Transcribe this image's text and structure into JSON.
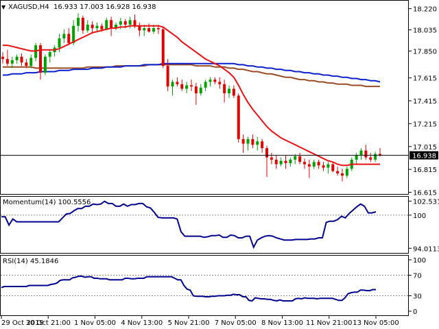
{
  "header": {
    "symbol": "XAGUSD,H4",
    "ohlc": "16.933 17.003 16.928 16.938",
    "collapse_icon": "triangle-down-icon"
  },
  "colors": {
    "bull": "#00a000",
    "bear": "#e00000",
    "ma_fast": "#e81010",
    "ma_mid": "#0a1fd0",
    "ma_slow": "#9a4a22",
    "indicator": "#000090",
    "grid_level": "#808080",
    "frame": "#000000"
  },
  "chart_data": [
    {
      "type": "candlestick",
      "title": "XAGUSD,H4",
      "ylim": [
        16.6,
        18.29
      ],
      "yticks": [
        "18.220",
        "18.035",
        "17.850",
        "17.615",
        "17.415",
        "17.215",
        "17.015",
        "16.815",
        "16.615"
      ],
      "current_price": "16.938",
      "current_price_value": 16.938,
      "candles": [
        [
          17.8,
          17.84,
          17.74,
          17.78
        ],
        [
          17.78,
          17.86,
          17.72,
          17.74
        ],
        [
          17.74,
          17.8,
          17.7,
          17.77
        ],
        [
          17.77,
          17.82,
          17.74,
          17.8
        ],
        [
          17.8,
          17.83,
          17.72,
          17.75
        ],
        [
          17.75,
          17.78,
          17.7,
          17.72
        ],
        [
          17.72,
          17.82,
          17.7,
          17.79
        ],
        [
          17.79,
          17.92,
          17.76,
          17.9
        ],
        [
          17.9,
          17.92,
          17.6,
          17.66
        ],
        [
          17.66,
          17.82,
          17.64,
          17.8
        ],
        [
          17.8,
          17.86,
          17.75,
          17.84
        ],
        [
          17.84,
          17.9,
          17.8,
          17.88
        ],
        [
          17.88,
          18,
          17.84,
          17.96
        ],
        [
          17.96,
          18.04,
          17.92,
          18
        ],
        [
          18,
          18.05,
          17.9,
          17.92
        ],
        [
          17.92,
          18.12,
          17.9,
          18.07
        ],
        [
          18.07,
          18.18,
          18.02,
          18.14
        ],
        [
          18.14,
          18.16,
          18,
          18.03
        ],
        [
          18.03,
          18.12,
          18.01,
          18.08
        ],
        [
          18.08,
          18.11,
          18,
          18.05
        ],
        [
          18.05,
          18.1,
          18.02,
          18.07
        ],
        [
          18.07,
          18.09,
          18.02,
          18.04
        ],
        [
          18.04,
          18.14,
          18.03,
          18.12
        ],
        [
          18.12,
          18.15,
          17.98,
          18.05
        ],
        [
          18.05,
          18.1,
          18.03,
          18.08
        ],
        [
          18.08,
          18.14,
          18.04,
          18.11
        ],
        [
          18.11,
          18.13,
          18.05,
          18.08
        ],
        [
          18.08,
          18.15,
          18.05,
          18.12
        ],
        [
          18.12,
          18.17,
          18.05,
          18.07
        ],
        [
          18.07,
          18.1,
          17.98,
          18.03
        ],
        [
          18.03,
          18.08,
          17.98,
          18.05
        ],
        [
          18.05,
          18.09,
          18.01,
          18.02
        ],
        [
          18.02,
          18.08,
          18,
          18.05
        ],
        [
          18.05,
          18.08,
          18,
          18.04
        ],
        [
          18.04,
          18.06,
          17.7,
          17.72
        ],
        [
          17.72,
          17.78,
          17.5,
          17.54
        ],
        [
          17.54,
          17.6,
          17.46,
          17.58
        ],
        [
          17.58,
          17.62,
          17.54,
          17.56
        ],
        [
          17.56,
          17.6,
          17.5,
          17.52
        ],
        [
          17.52,
          17.58,
          17.48,
          17.55
        ],
        [
          17.55,
          17.6,
          17.5,
          17.54
        ],
        [
          17.54,
          17.57,
          17.38,
          17.48
        ],
        [
          17.48,
          17.56,
          17.46,
          17.53
        ],
        [
          17.53,
          17.6,
          17.5,
          17.58
        ],
        [
          17.58,
          17.62,
          17.54,
          17.6
        ],
        [
          17.6,
          17.62,
          17.56,
          17.58
        ],
        [
          17.58,
          17.62,
          17.52,
          17.56
        ],
        [
          17.56,
          17.6,
          17.4,
          17.48
        ],
        [
          17.48,
          17.55,
          17.44,
          17.52
        ],
        [
          17.52,
          17.55,
          17.44,
          17.46
        ],
        [
          17.46,
          17.48,
          17.05,
          17.08
        ],
        [
          17.08,
          17.12,
          16.96,
          17.04
        ],
        [
          17.04,
          17.1,
          16.98,
          17.08
        ],
        [
          17.08,
          17.12,
          17,
          17.03
        ],
        [
          17.03,
          17.1,
          16.98,
          17.06
        ],
        [
          17.06,
          17.08,
          16.96,
          17
        ],
        [
          17,
          17.02,
          16.75,
          16.92
        ],
        [
          16.92,
          16.96,
          16.86,
          16.9
        ],
        [
          16.9,
          16.94,
          16.82,
          16.86
        ],
        [
          16.86,
          16.92,
          16.84,
          16.89
        ],
        [
          16.89,
          16.94,
          16.82,
          16.87
        ],
        [
          16.87,
          16.92,
          16.84,
          16.9
        ],
        [
          16.9,
          16.95,
          16.86,
          16.93
        ],
        [
          16.93,
          16.96,
          16.86,
          16.88
        ],
        [
          16.88,
          16.91,
          16.82,
          16.86
        ],
        [
          16.86,
          16.9,
          16.74,
          16.84
        ],
        [
          16.84,
          16.9,
          16.82,
          16.88
        ],
        [
          16.88,
          16.9,
          16.82,
          16.85
        ],
        [
          16.85,
          16.88,
          16.8,
          16.83
        ],
        [
          16.83,
          16.88,
          16.78,
          16.86
        ],
        [
          16.86,
          16.88,
          16.79,
          16.8
        ],
        [
          16.8,
          16.84,
          16.76,
          16.78
        ],
        [
          16.78,
          16.82,
          16.71,
          16.76
        ],
        [
          16.76,
          16.84,
          16.74,
          16.82
        ],
        [
          16.82,
          16.92,
          16.8,
          16.9
        ],
        [
          16.9,
          16.96,
          16.86,
          16.94
        ],
        [
          16.94,
          17,
          16.9,
          16.98
        ],
        [
          16.98,
          17.03,
          16.9,
          16.92
        ],
        [
          16.92,
          16.96,
          16.88,
          16.9
        ],
        [
          16.9,
          16.97,
          16.88,
          16.95
        ],
        [
          16.95,
          17.003,
          16.928,
          16.938
        ]
      ],
      "ma_fast": [
        17.9,
        17.9,
        17.89,
        17.88,
        17.87,
        17.86,
        17.85,
        17.85,
        17.86,
        17.86,
        17.86,
        17.86,
        17.87,
        17.89,
        17.91,
        17.93,
        17.95,
        17.97,
        17.99,
        18.01,
        18.02,
        18.03,
        18.04,
        18.05,
        18.05,
        18.06,
        18.06,
        18.07,
        18.07,
        18.07,
        18.07,
        18.07,
        18.07,
        18.07,
        18.06,
        18.03,
        18,
        17.97,
        17.93,
        17.9,
        17.87,
        17.84,
        17.81,
        17.78,
        17.76,
        17.74,
        17.72,
        17.69,
        17.66,
        17.62,
        17.55,
        17.47,
        17.4,
        17.34,
        17.29,
        17.24,
        17.19,
        17.15,
        17.12,
        17.09,
        17.07,
        17.05,
        17.03,
        17.01,
        16.99,
        16.97,
        16.95,
        16.93,
        16.91,
        16.89,
        16.88,
        16.86,
        16.85,
        16.85,
        16.86,
        16.86,
        16.86,
        16.86,
        16.86,
        16.86,
        16.86
      ],
      "ma_mid": [
        17.64,
        17.64,
        17.65,
        17.65,
        17.65,
        17.66,
        17.66,
        17.66,
        17.67,
        17.67,
        17.67,
        17.67,
        17.68,
        17.68,
        17.68,
        17.69,
        17.69,
        17.69,
        17.69,
        17.7,
        17.7,
        17.7,
        17.71,
        17.71,
        17.71,
        17.71,
        17.72,
        17.72,
        17.72,
        17.72,
        17.73,
        17.73,
        17.73,
        17.73,
        17.74,
        17.74,
        17.74,
        17.74,
        17.74,
        17.74,
        17.74,
        17.74,
        17.74,
        17.74,
        17.74,
        17.74,
        17.74,
        17.74,
        17.74,
        17.74,
        17.73,
        17.73,
        17.72,
        17.72,
        17.71,
        17.71,
        17.7,
        17.7,
        17.69,
        17.69,
        17.68,
        17.68,
        17.67,
        17.67,
        17.66,
        17.66,
        17.65,
        17.65,
        17.64,
        17.64,
        17.63,
        17.63,
        17.62,
        17.62,
        17.61,
        17.61,
        17.6,
        17.6,
        17.59,
        17.59,
        17.58
      ],
      "ma_slow": [
        17.71,
        17.71,
        17.71,
        17.71,
        17.71,
        17.71,
        17.71,
        17.7,
        17.7,
        17.7,
        17.7,
        17.7,
        17.7,
        17.7,
        17.7,
        17.7,
        17.7,
        17.7,
        17.71,
        17.71,
        17.71,
        17.71,
        17.71,
        17.71,
        17.72,
        17.72,
        17.72,
        17.72,
        17.72,
        17.72,
        17.72,
        17.73,
        17.73,
        17.73,
        17.73,
        17.73,
        17.73,
        17.73,
        17.73,
        17.73,
        17.73,
        17.72,
        17.72,
        17.72,
        17.72,
        17.71,
        17.71,
        17.71,
        17.7,
        17.7,
        17.69,
        17.69,
        17.68,
        17.67,
        17.67,
        17.66,
        17.65,
        17.65,
        17.64,
        17.63,
        17.62,
        17.62,
        17.61,
        17.6,
        17.6,
        17.59,
        17.59,
        17.58,
        17.58,
        17.57,
        17.57,
        17.56,
        17.56,
        17.56,
        17.55,
        17.55,
        17.55,
        17.54,
        17.54,
        17.54,
        17.54
      ]
    },
    {
      "type": "line",
      "title": "Momentum(14) 100.5556",
      "ylim": [
        93.3,
        103.2
      ],
      "yticks": [
        "102.5318",
        "100",
        "94.0113"
      ],
      "level": 100,
      "values": [
        99.7,
        99.7,
        98.2,
        99.3,
        98.8,
        98.8,
        98.8,
        98.8,
        98.8,
        98.8,
        98.8,
        98.8,
        98.8,
        98.8,
        98.8,
        98.8,
        99.5,
        100.2,
        100.3,
        100.8,
        101.2,
        101.2,
        101.6,
        101.6,
        102.0,
        101.9,
        102.0,
        102.5,
        102.1,
        102.1,
        101.6,
        101.6,
        102.0,
        101.6,
        101.9,
        101.9,
        102.1,
        102.1,
        101.5,
        101.3,
        100.5,
        99.6,
        99.5,
        99.5,
        99.5,
        99.5,
        99.3,
        97.0,
        96.2,
        96.2,
        96.2,
        96.2,
        96.2,
        96.0,
        96.1,
        96.3,
        96.3,
        96.4,
        96.0,
        96.0,
        96.4,
        96.3,
        95.9,
        95.9,
        96.2,
        96.2,
        94.2,
        95.5,
        95.9,
        96.2,
        96.3,
        96.2,
        95.9,
        95.7,
        95.5,
        95.5,
        95.5,
        95.6,
        95.6,
        95.6,
        95.6,
        95.7,
        95.7,
        95.9,
        95.9,
        98.7,
        98.9,
        98.9,
        99.2,
        99.8,
        99.5,
        100.3,
        100.9,
        101.5,
        102.0,
        101.6,
        100.4,
        100.4,
        100.6
      ]
    },
    {
      "type": "line",
      "title": "RSI(14) 45.1846",
      "ylim": [
        0,
        100
      ],
      "yticks": [
        "100",
        "70",
        "30",
        "0"
      ],
      "levels": [
        70,
        30
      ],
      "values": [
        46,
        48,
        48,
        48,
        48,
        48,
        48,
        48,
        48,
        50,
        50,
        50,
        50,
        50,
        50,
        50,
        52,
        53,
        55,
        60,
        61,
        61,
        61,
        65,
        66,
        68,
        68,
        66,
        67,
        67,
        64,
        64,
        63,
        63,
        63,
        61,
        61,
        61,
        61,
        61,
        64,
        64,
        63,
        63,
        64,
        64,
        64,
        67,
        67,
        67,
        67,
        67,
        67,
        67,
        67,
        67,
        64,
        61,
        61,
        50,
        43,
        41,
        30,
        29,
        29,
        29,
        28,
        28,
        29,
        29,
        30,
        30,
        30,
        31,
        31,
        33,
        32,
        32,
        28,
        28,
        21,
        20,
        26,
        25,
        24,
        24,
        23,
        23,
        21,
        20,
        22,
        20,
        20,
        20,
        20,
        24,
        25,
        24,
        26,
        25,
        25,
        25,
        24,
        25,
        25,
        25,
        25,
        25,
        23,
        21,
        21,
        26,
        34,
        36,
        37,
        37,
        41,
        41,
        40,
        40,
        42,
        42
      ]
    }
  ],
  "xaxis": {
    "labels": [
      "29 Oct 2019",
      "30 Oct 21:00",
      "1 Nov 05:00",
      "4 Nov 13:00",
      "5 Nov 21:00",
      "7 Nov 05:00",
      "8 Nov 13:00",
      "11 Nov 21:00",
      "13 Nov 05:00"
    ]
  }
}
